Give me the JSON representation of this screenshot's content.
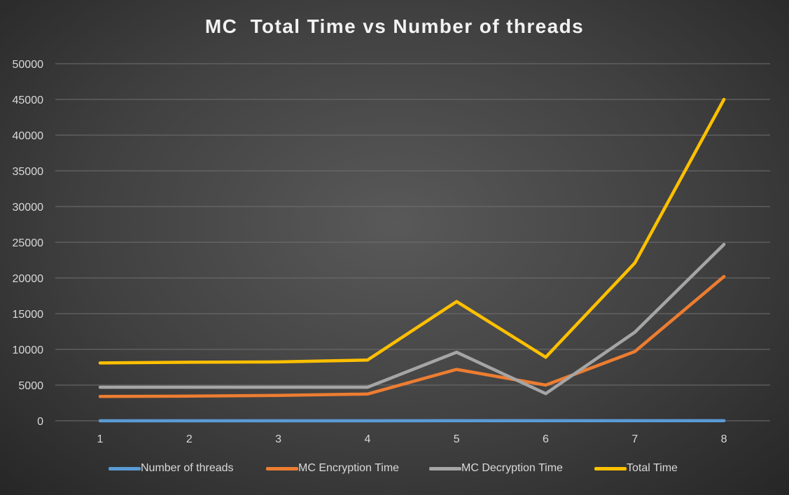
{
  "chart_data": {
    "type": "line",
    "title": "MC  Total Time vs Number of threads",
    "categories": [
      "1",
      "2",
      "3",
      "4",
      "5",
      "6",
      "7",
      "8"
    ],
    "ylim": [
      0,
      50000
    ],
    "yticks": [
      "0",
      "5000",
      "10000",
      "15000",
      "20000",
      "25000",
      "30000",
      "35000",
      "40000",
      "45000",
      "50000"
    ],
    "grid": true,
    "legend_position": "bottom",
    "series": [
      {
        "name": "Number of threads",
        "color": "#5b9bd5",
        "values": [
          1,
          2,
          3,
          4,
          5,
          6,
          7,
          8
        ]
      },
      {
        "name": "MC Encryption Time",
        "color": "#ed7d31",
        "values": [
          3400,
          3450,
          3550,
          3750,
          7200,
          5000,
          9700,
          20200
        ]
      },
      {
        "name": "MC Decryption Time",
        "color": "#a5a5a5",
        "values": [
          4700,
          4700,
          4700,
          4700,
          9600,
          3800,
          12400,
          24700
        ]
      },
      {
        "name": "Total Time",
        "color": "#ffc000",
        "values": [
          8100,
          8200,
          8250,
          8500,
          16700,
          8900,
          22100,
          45000
        ]
      }
    ]
  }
}
